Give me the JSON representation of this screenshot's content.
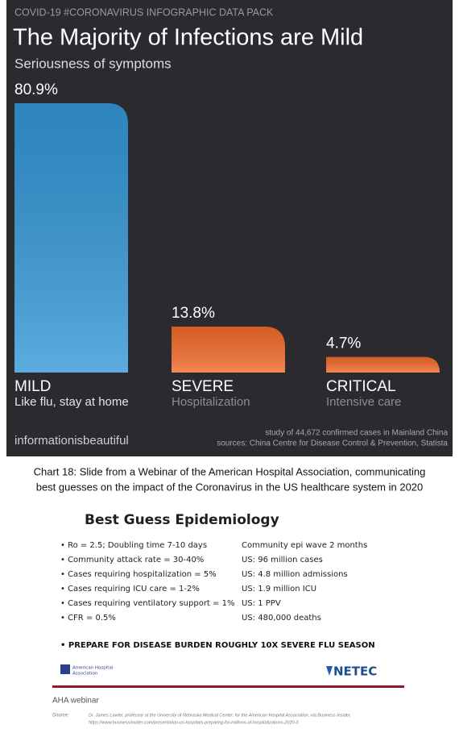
{
  "chart_data": {
    "type": "bar",
    "kicker": "COVID-19 #CORONAVIRUS INFOGRAPHIC DATA PACK",
    "title": "The Majority of Infections are Mild",
    "subtitle": "Seriousness of symptoms",
    "categories": [
      "MILD",
      "SEVERE",
      "CRITICAL"
    ],
    "category_notes": [
      "Like flu, stay at home",
      "Hospitalization",
      "Intensive care"
    ],
    "values": [
      80.9,
      13.8,
      4.7
    ],
    "value_labels": [
      "80.9%",
      "13.8%",
      "4.7%"
    ],
    "colors": [
      "#3397d6",
      "#f26a2a",
      "#f26a2a"
    ],
    "brand": "informationisbeautiful",
    "notes": [
      "study of 44,672 confirmed cases in Mainland China",
      "sources: China Centre for Disease Control & Prevention, Statista"
    ]
  },
  "caption": [
    "Chart 18: Slide from a Webinar of the American Hospital Association, communicating",
    "best guesses on the impact of the Coronavirus in the US healthcare system in 2020"
  ],
  "slide": {
    "title": "Best Guess Epidemiology",
    "left": [
      "• Ro = 2.5; Doubling time 7-10 days",
      "• Community attack rate = 30-40%",
      "• Cases requiring hospitalization = 5%",
      "• Cases requiring ICU care = 1-2%",
      "• Cases requiring ventilatory support = 1%",
      "• CFR = 0.5%"
    ],
    "right": [
      "Community epi wave 2 months",
      "US: 96 million cases",
      "US: 4.8 million admissions",
      "US: 1.9 million ICU",
      "US: 1 PPV",
      "US: 480,000 deaths"
    ],
    "emphasis": "• PREPARE FOR DISEASE BURDEN ROUGHLY 10X SEVERE FLU SEASON",
    "logo_left": [
      "American Hospital",
      "Association"
    ],
    "logo_right": "NETEC"
  },
  "footer": "AHA webinar",
  "source": {
    "label": "Source:",
    "lines": [
      "Dr. James Lawler, professor at the University of Nebraska Medical Center, for the American Hospital Association, via Business Insider,",
      "https://www.businessinsider.com/presentation-us-hospitals-preparing-for-millions-of-hospitalizations-2020-3"
    ]
  }
}
